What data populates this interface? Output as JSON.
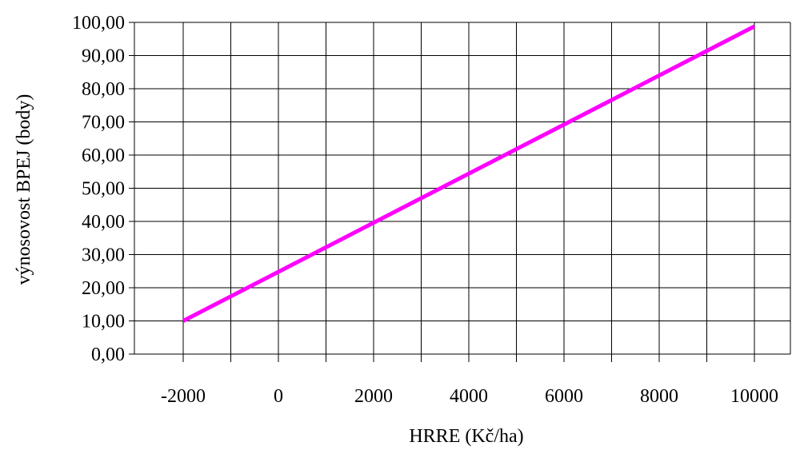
{
  "chart_data": {
    "type": "line",
    "xlabel": "HRRE (Kč/ha)",
    "ylabel": "výnosovost BPEJ (body)",
    "x_ticks": [
      -2000,
      0,
      2000,
      4000,
      6000,
      8000,
      10000
    ],
    "x_tick_labels": [
      "-2000",
      "0",
      "2000",
      "4000",
      "6000",
      "8000",
      "10000"
    ],
    "y_ticks": [
      0,
      10,
      20,
      30,
      40,
      50,
      60,
      70,
      80,
      90,
      100
    ],
    "y_tick_labels": [
      "0,00",
      "10,00",
      "20,00",
      "30,00",
      "40,00",
      "50,00",
      "60,00",
      "70,00",
      "80,00",
      "90,00",
      "100,00"
    ],
    "xlim": [
      -3000,
      11000
    ],
    "ylim": [
      0,
      100
    ],
    "grid": true,
    "series": [
      {
        "color": "#FF00FF",
        "x": [
          -2000,
          10000
        ],
        "y": [
          10,
          98.8
        ]
      }
    ]
  }
}
